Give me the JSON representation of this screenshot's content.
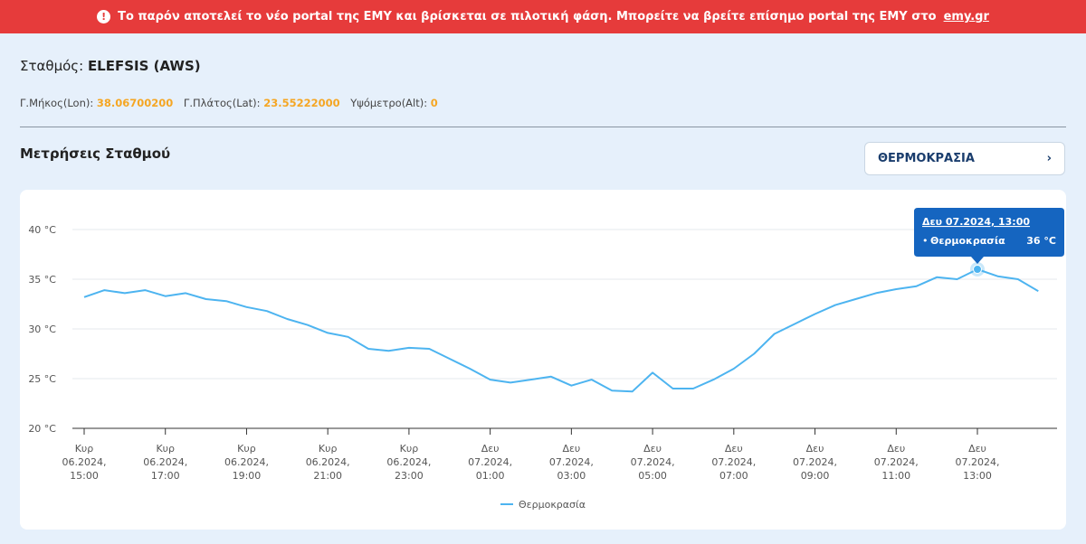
{
  "banner": {
    "text": "Το παρόν αποτελεί το νέο portal της ΕΜΥ και βρίσκεται σε πιλοτική φάση. Μπορείτε να βρείτε επίσημο portal της ΕΜΥ στο",
    "link": "emy.gr"
  },
  "station": {
    "label": "Σταθμός:",
    "name": "ELEFSIS (AWS)",
    "lon_label": "Γ.Μήκος(Lon):",
    "lon": "38.06700200",
    "lat_label": "Γ.Πλάτος(Lat):",
    "lat": "23.55222000",
    "alt_label": "Υψόμετρο(Alt):",
    "alt": "0"
  },
  "section": {
    "title": "Μετρήσεις Σταθμού",
    "selector": "ΘΕΡΜΟΚΡΑΣΙΑ"
  },
  "chart_data": {
    "type": "line",
    "x": [
      "Κυρ 06.2024, 15:00",
      "Κυρ 06.2024, 15:30",
      "Κυρ 06.2024, 16:00",
      "Κυρ 06.2024, 16:30",
      "Κυρ 06.2024, 17:00",
      "Κυρ 06.2024, 17:30",
      "Κυρ 06.2024, 18:00",
      "Κυρ 06.2024, 18:30",
      "Κυρ 06.2024, 19:00",
      "Κυρ 06.2024, 19:30",
      "Κυρ 06.2024, 20:00",
      "Κυρ 06.2024, 20:30",
      "Κυρ 06.2024, 21:00",
      "Κυρ 06.2024, 21:30",
      "Κυρ 06.2024, 22:00",
      "Κυρ 06.2024, 22:30",
      "Κυρ 06.2024, 23:00",
      "Κυρ 06.2024, 23:30",
      "Δευ 07.2024, 00:00",
      "Δευ 07.2024, 00:30",
      "Δευ 07.2024, 01:00",
      "Δευ 07.2024, 01:30",
      "Δευ 07.2024, 02:00",
      "Δευ 07.2024, 02:30",
      "Δευ 07.2024, 03:00",
      "Δευ 07.2024, 03:30",
      "Δευ 07.2024, 04:00",
      "Δευ 07.2024, 04:30",
      "Δευ 07.2024, 05:00",
      "Δευ 07.2024, 05:30",
      "Δευ 07.2024, 06:00",
      "Δευ 07.2024, 06:30",
      "Δευ 07.2024, 07:00",
      "Δευ 07.2024, 07:30",
      "Δευ 07.2024, 08:00",
      "Δευ 07.2024, 08:30",
      "Δευ 07.2024, 09:00",
      "Δευ 07.2024, 09:30",
      "Δευ 07.2024, 10:00",
      "Δευ 07.2024, 10:30",
      "Δευ 07.2024, 11:00",
      "Δευ 07.2024, 11:30",
      "Δευ 07.2024, 12:00",
      "Δευ 07.2024, 12:30",
      "Δευ 07.2024, 13:00",
      "Δευ 07.2024, 13:30",
      "Δευ 07.2024, 14:00",
      "Δευ 07.2024, 14:30"
    ],
    "series": [
      {
        "name": "Θερμοκρασία",
        "color": "#4db4f0",
        "values": [
          33.2,
          33.9,
          33.6,
          33.9,
          33.3,
          33.6,
          33.0,
          32.8,
          32.2,
          31.8,
          31.0,
          30.4,
          29.6,
          29.2,
          28.0,
          27.8,
          28.1,
          28.0,
          27.0,
          26.0,
          24.9,
          24.6,
          24.9,
          25.2,
          24.3,
          24.9,
          23.8,
          23.7,
          25.6,
          24.0,
          24.0,
          24.9,
          26.0,
          27.5,
          29.5,
          30.5,
          31.5,
          32.4,
          33.0,
          33.6,
          34.0,
          34.3,
          35.2,
          35.0,
          36,
          35.3,
          35.0,
          33.8
        ]
      }
    ],
    "xticks": [
      "Κυρ 06.2024, 15:00",
      "Κυρ 06.2024, 17:00",
      "Κυρ 06.2024, 19:00",
      "Κυρ 06.2024, 21:00",
      "Κυρ 06.2024, 23:00",
      "Δευ 07.2024, 01:00",
      "Δευ 07.2024, 03:00",
      "Δευ 07.2024, 05:00",
      "Δευ 07.2024, 07:00",
      "Δευ 07.2024, 09:00",
      "Δευ 07.2024, 11:00",
      "Δευ 07.2024, 13:00"
    ],
    "ylim": [
      20,
      42
    ],
    "yticks": [
      {
        "value": 20,
        "label": "20 °C"
      },
      {
        "value": 25,
        "label": "25 °C"
      },
      {
        "value": 30,
        "label": "30 °C"
      },
      {
        "value": 35,
        "label": "35 °C"
      },
      {
        "value": 40,
        "label": "40 °C"
      }
    ],
    "grid": true,
    "tooltip": {
      "x": "Δευ 07.2024, 13:00",
      "value_label": "36 °C"
    }
  }
}
